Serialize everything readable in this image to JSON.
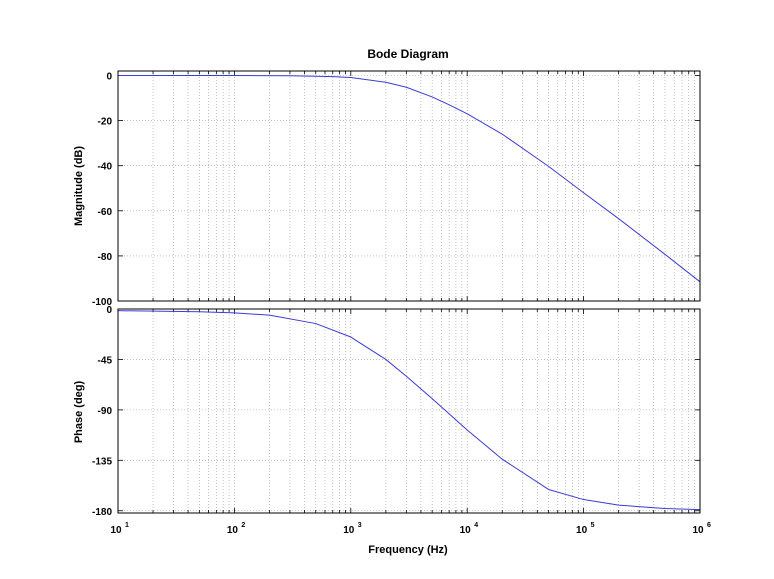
{
  "chart_data": {
    "type": "line",
    "title": "Bode Diagram",
    "xlabel": "Frequency  (Hz)",
    "xscale": "log",
    "xlim": [
      10,
      1000000
    ],
    "x_tick_labels": [
      {
        "value": 10,
        "base": "10",
        "exp": "1"
      },
      {
        "value": 100,
        "base": "10",
        "exp": "2"
      },
      {
        "value": 1000,
        "base": "10",
        "exp": "3"
      },
      {
        "value": 10000,
        "base": "10",
        "exp": "4"
      },
      {
        "value": 100000,
        "base": "10",
        "exp": "5"
      },
      {
        "value": 1000000,
        "base": "10",
        "exp": "6"
      }
    ],
    "grid": true,
    "line_color": "#3b3bd8",
    "subplots": [
      {
        "name": "magnitude",
        "ylabel": "Magnitude (dB)",
        "ylim": [
          -100,
          2
        ],
        "yticks": [
          0,
          -20,
          -40,
          -60,
          -80,
          -100
        ],
        "ytick_labels": [
          "0",
          "-20",
          "-40",
          "-60",
          "-80",
          "-100"
        ],
        "x": [
          10,
          100,
          300,
          500,
          700,
          1000,
          2000,
          3000,
          5000,
          7000,
          10000,
          20000,
          50000,
          100000,
          200000,
          500000,
          1000000
        ],
        "y": [
          0,
          0,
          -0.1,
          -0.3,
          -0.5,
          -0.9,
          -3,
          -5.2,
          -9.5,
          -13,
          -17,
          -26,
          -40.3,
          -52,
          -63.5,
          -79.3,
          -91.5
        ]
      },
      {
        "name": "phase",
        "ylabel": "Phase (deg)",
        "ylim": [
          -182,
          0
        ],
        "yticks": [
          0,
          -45,
          -90,
          -135,
          -180
        ],
        "ytick_labels": [
          "0",
          "-45",
          "-90",
          "-135",
          "-180"
        ],
        "x": [
          10,
          50,
          100,
          200,
          500,
          1000,
          2000,
          3000,
          5000,
          10000,
          20000,
          50000,
          100000,
          200000,
          500000,
          1000000
        ],
        "y": [
          -1.5,
          -2.5,
          -3.5,
          -5.5,
          -13,
          -25,
          -45,
          -60,
          -80,
          -108,
          -134,
          -161,
          -170,
          -175,
          -178,
          -179
        ]
      }
    ]
  }
}
